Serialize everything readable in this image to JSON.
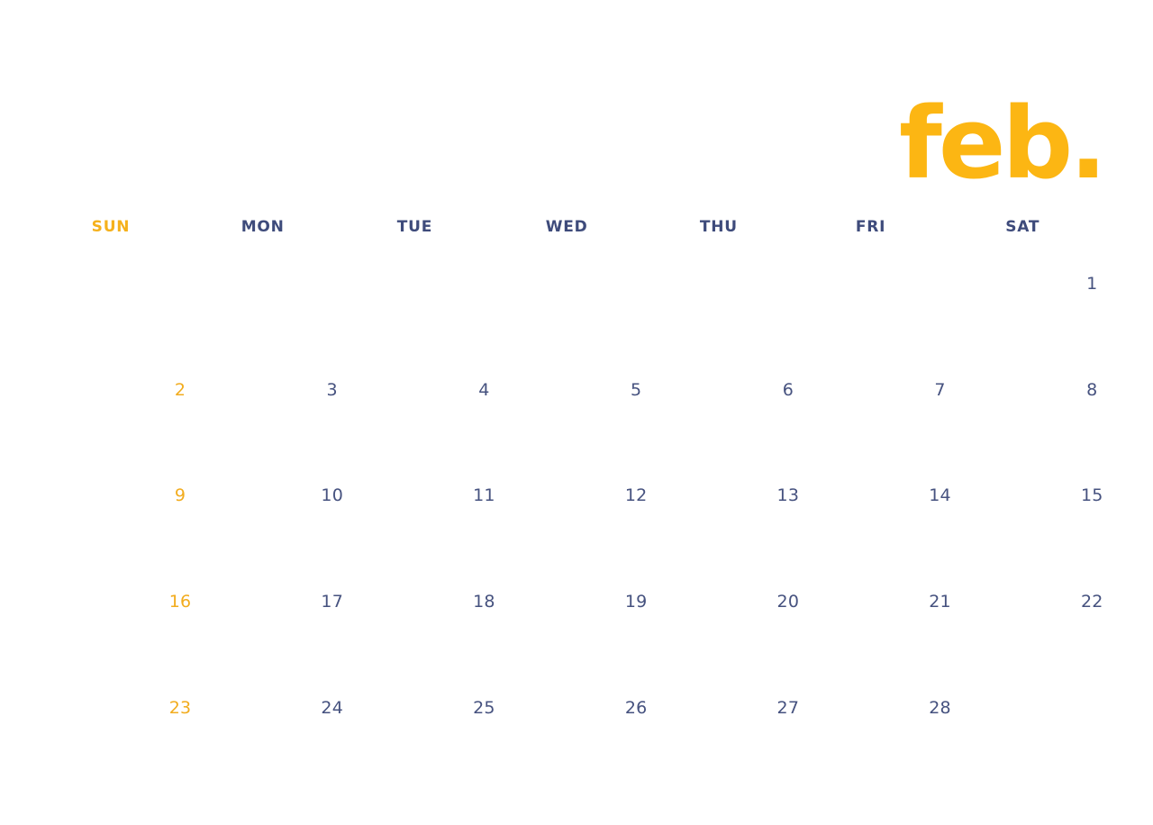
{
  "page": {
    "title": "feb."
  },
  "colors": {
    "title_yellow": "#FCB613",
    "sunday_yellow": "#F2AC1E",
    "header_sun_yellow": "#F5B11C",
    "header_navy": "#3E4B7B",
    "date_navy": "#46527F",
    "background": "#FFFFFF"
  },
  "weekdays": [
    {
      "label": "SUN",
      "highlight": true
    },
    {
      "label": "MON",
      "highlight": false
    },
    {
      "label": "TUE",
      "highlight": false
    },
    {
      "label": "WED",
      "highlight": false
    },
    {
      "label": "THU",
      "highlight": false
    },
    {
      "label": "FRI",
      "highlight": false
    },
    {
      "label": "SAT",
      "highlight": false
    }
  ],
  "weeks": [
    {
      "days": [
        "",
        "",
        "",
        "",
        "",
        "",
        "1"
      ]
    },
    {
      "days": [
        "2",
        "3",
        "4",
        "5",
        "6",
        "7",
        "8"
      ]
    },
    {
      "days": [
        "9",
        "10",
        "11",
        "12",
        "13",
        "14",
        "15"
      ]
    },
    {
      "days": [
        "16",
        "17",
        "18",
        "19",
        "20",
        "21",
        "22"
      ]
    },
    {
      "days": [
        "23",
        "24",
        "25",
        "26",
        "27",
        "28",
        ""
      ]
    }
  ]
}
